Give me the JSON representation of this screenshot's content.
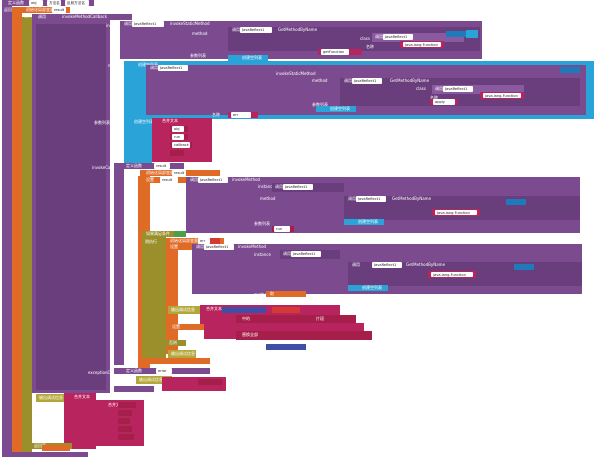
{
  "labels": {
    "define_proc": "定义函数",
    "define_proc2": "定义函数",
    "run": "返回",
    "run2": "运行",
    "init_local": "初始化局部变量",
    "init_local2": "初始化局部变量",
    "invoke_static": "invokeStaticMethod",
    "invoke_method": "invokeMethod",
    "invoke_callback": "invokeMethodCallback",
    "instance": "instance",
    "method": "method",
    "params": "参数列表",
    "class": "class",
    "name": "名称",
    "call": "调用",
    "get_method_by_name": "GetMethodByName",
    "get_class_by_name": "GetClassByName",
    "java_reflect": "JavaReflect1",
    "create_list": "创建空列表",
    "create_list2": "创建空列表",
    "join_text": "合并文本",
    "join_text2": "合并文本",
    "if_label": "如果满足条件",
    "then_label": "则执行",
    "otherwise": "否则",
    "set": "设置",
    "to": "为",
    "get": "取",
    "invoke_callback_param": "invokeCallback",
    "exception_callback": "exceptionCallback",
    "output_label": "输出调试信息",
    "output_label2": "输出调试信息",
    "string_contains": "字符串包含",
    "text_contains": "字符串",
    "replace_all": "替换全部",
    "from": "中的",
    "segment": "片段",
    "return_value": "返回值"
  },
  "strings": {
    "s_obj": "obj",
    "s_reflect_method": "反射方法名",
    "s_method_name": "方法名",
    "s_getfunction": "getFunction",
    "s_java_lang_function": "java.lang.Function",
    "s_callback": "callback",
    "s_apply": "apply",
    "s_result": "result",
    "s_run": "run",
    "s_err": "err",
    "s_error": "error"
  },
  "colors": {
    "procedure": "#7b4a8f",
    "variable": "#e06b27",
    "control": "#9a8f2a",
    "list": "#2aa3d8",
    "text": "#b8245e",
    "number": "#3f4fa8"
  }
}
